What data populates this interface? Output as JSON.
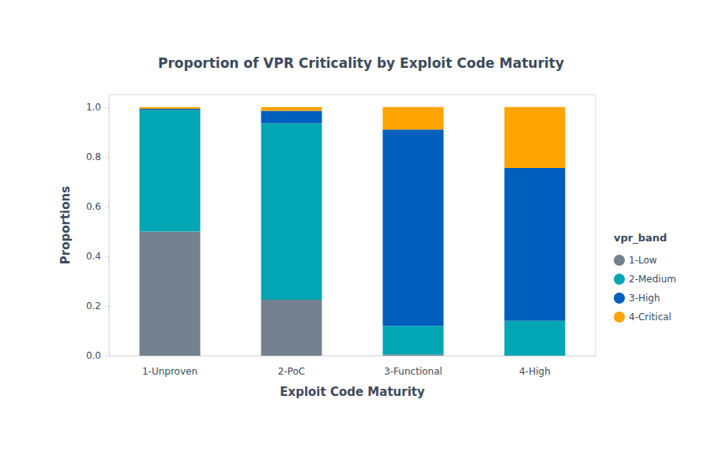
{
  "chart_data": {
    "type": "bar",
    "stacked": true,
    "title": "Proportion of VPR Criticality by Exploit Code Maturity",
    "x_label": "Exploit Code Maturity",
    "y_label": "Proportions",
    "legend_title": "vpr_band",
    "legend": "right",
    "grid": false,
    "categories": [
      "1-Unproven",
      "2-PoC",
      "3-Functional",
      "4-High"
    ],
    "series": [
      {
        "name": "1-Low",
        "color": "#74828f",
        "values": [
          0.5,
          0.225,
          0.005,
          0.0
        ]
      },
      {
        "name": "2-Medium",
        "color": "#00a6b3",
        "values": [
          0.488,
          0.71,
          0.115,
          0.14
        ]
      },
      {
        "name": "3-High",
        "color": "#005ebd",
        "values": [
          0.005,
          0.05,
          0.79,
          0.615
        ]
      },
      {
        "name": "4-Critical",
        "color": "#ffa400",
        "values": [
          0.007,
          0.015,
          0.09,
          0.245
        ]
      }
    ],
    "ylim": [
      0,
      1.05
    ],
    "yticks": [
      {
        "value": 0,
        "label": "0.0"
      },
      0.2,
      0.4,
      0.6,
      0.8,
      {
        "value": 1,
        "label": "1.0"
      }
    ]
  }
}
